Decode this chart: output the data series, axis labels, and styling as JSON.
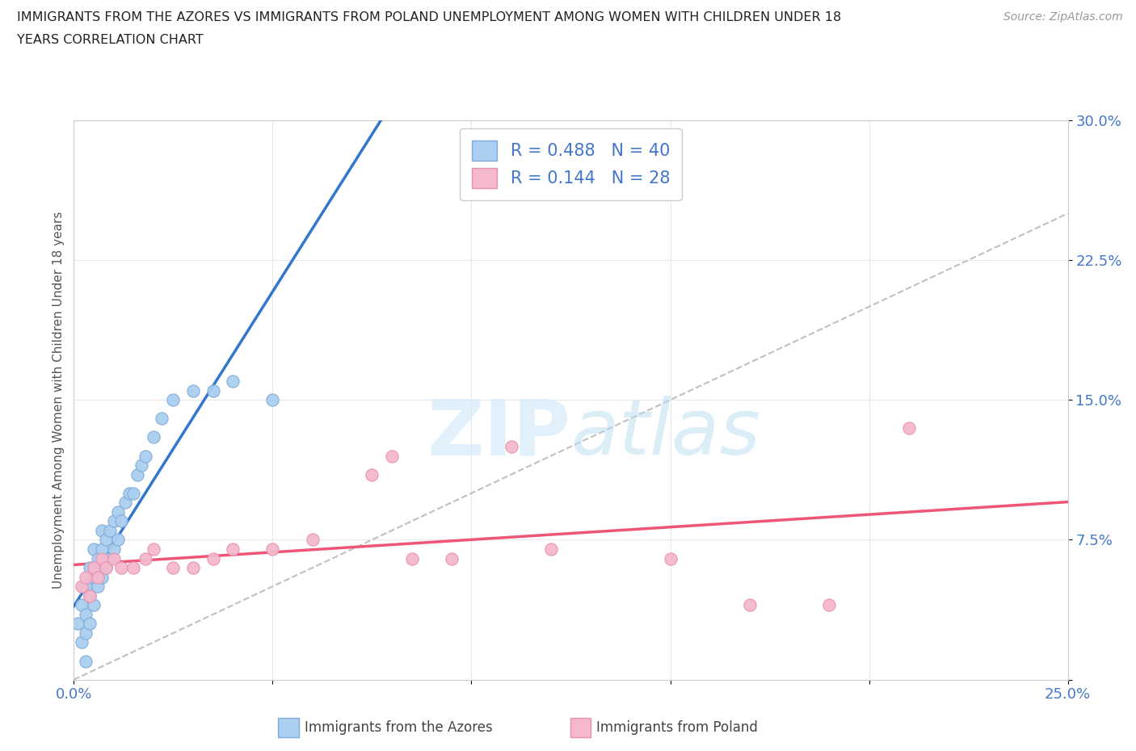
{
  "title_line1": "IMMIGRANTS FROM THE AZORES VS IMMIGRANTS FROM POLAND UNEMPLOYMENT AMONG WOMEN WITH CHILDREN UNDER 18",
  "title_line2": "YEARS CORRELATION CHART",
  "source": "Source: ZipAtlas.com",
  "ylabel": "Unemployment Among Women with Children Under 18 years",
  "xlim": [
    0.0,
    0.25
  ],
  "ylim": [
    0.0,
    0.3
  ],
  "xtick_positions": [
    0.0,
    0.05,
    0.1,
    0.15,
    0.2,
    0.25
  ],
  "ytick_positions": [
    0.0,
    0.075,
    0.15,
    0.225,
    0.3
  ],
  "azores_color": "#aacff0",
  "poland_color": "#f5b8cc",
  "azores_edge": "#80aad8",
  "poland_edge": "#e890b0",
  "trend_azores_color": "#3377cc",
  "trend_poland_color": "#ee5577",
  "diag_color": "#c0c0c0",
  "tick_color": "#4477cc",
  "grid_color": "#e8e8e8",
  "legend_label_azores": "R = 0.488   N = 40",
  "legend_label_poland": "R = 0.144   N = 28",
  "watermark_color": "#d5ebf8",
  "azores_x": [
    0.001,
    0.002,
    0.002,
    0.003,
    0.003,
    0.003,
    0.004,
    0.004,
    0.004,
    0.005,
    0.005,
    0.005,
    0.006,
    0.006,
    0.007,
    0.007,
    0.007,
    0.008,
    0.008,
    0.009,
    0.009,
    0.01,
    0.01,
    0.011,
    0.011,
    0.012,
    0.013,
    0.014,
    0.015,
    0.016,
    0.017,
    0.018,
    0.02,
    0.022,
    0.025,
    0.03,
    0.035,
    0.04,
    0.05,
    0.003
  ],
  "azores_y": [
    0.03,
    0.02,
    0.04,
    0.025,
    0.035,
    0.05,
    0.03,
    0.045,
    0.06,
    0.04,
    0.055,
    0.07,
    0.05,
    0.065,
    0.055,
    0.07,
    0.08,
    0.06,
    0.075,
    0.065,
    0.08,
    0.07,
    0.085,
    0.075,
    0.09,
    0.085,
    0.095,
    0.1,
    0.1,
    0.11,
    0.115,
    0.12,
    0.13,
    0.14,
    0.15,
    0.155,
    0.155,
    0.16,
    0.15,
    0.01
  ],
  "poland_x": [
    0.002,
    0.003,
    0.004,
    0.005,
    0.006,
    0.007,
    0.008,
    0.01,
    0.012,
    0.015,
    0.018,
    0.02,
    0.025,
    0.03,
    0.035,
    0.04,
    0.05,
    0.06,
    0.075,
    0.085,
    0.095,
    0.11,
    0.12,
    0.15,
    0.17,
    0.19,
    0.21,
    0.08
  ],
  "poland_y": [
    0.05,
    0.055,
    0.045,
    0.06,
    0.055,
    0.065,
    0.06,
    0.065,
    0.06,
    0.06,
    0.065,
    0.07,
    0.06,
    0.06,
    0.065,
    0.07,
    0.07,
    0.075,
    0.11,
    0.065,
    0.065,
    0.125,
    0.07,
    0.065,
    0.04,
    0.04,
    0.135,
    0.12
  ]
}
